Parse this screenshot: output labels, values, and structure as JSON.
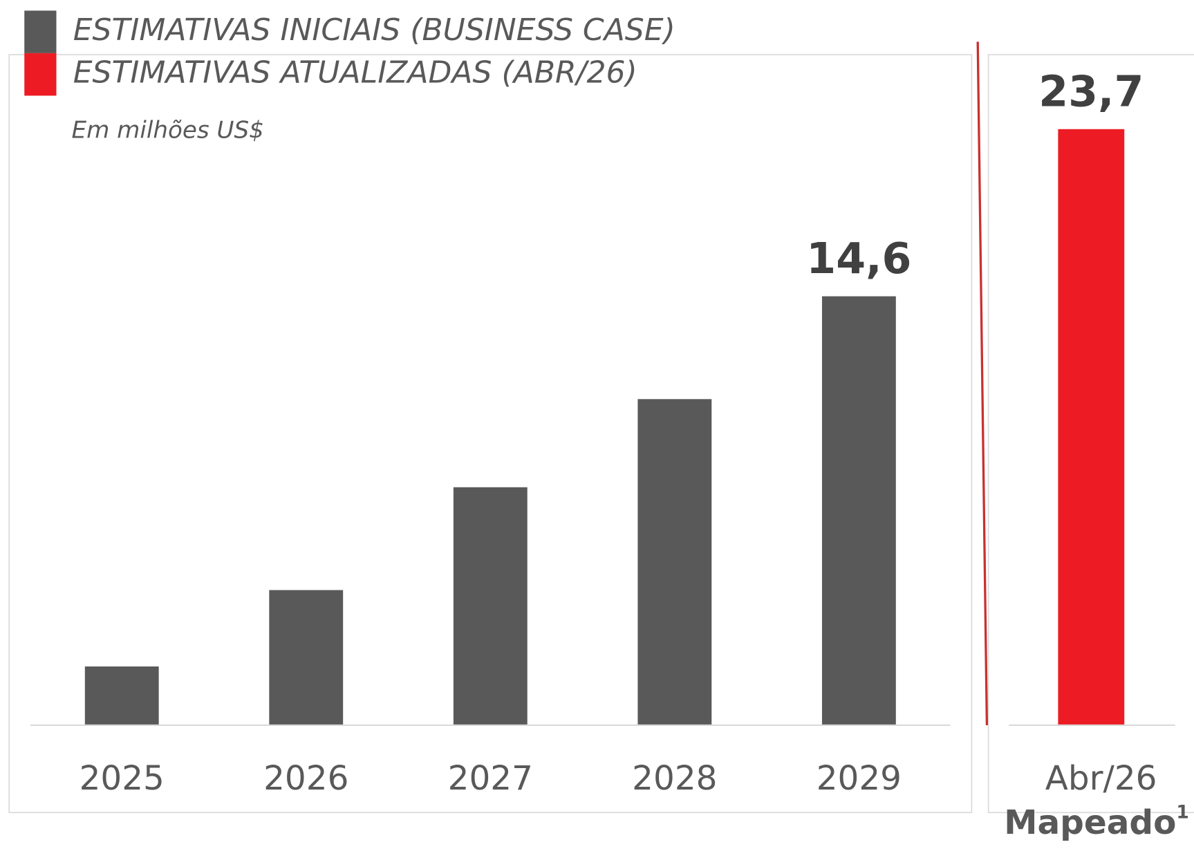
{
  "chart_data": [
    {
      "type": "bar",
      "subtitle": "Em milhões US$",
      "categories": [
        "2025",
        "2026",
        "2027",
        "2028",
        "2029"
      ],
      "series": [
        {
          "name": "ESTIMATIVAS INICIAIS (BUSINESS CASE)",
          "color": "#595959",
          "values": [
            2.0,
            4.6,
            8.1,
            11.1,
            14.6
          ],
          "value_labels": [
            null,
            null,
            null,
            null,
            "14,6"
          ]
        }
      ],
      "ylim": [
        0,
        16
      ]
    },
    {
      "type": "bar",
      "categories": [
        "Abr/26"
      ],
      "xlabel": "Mapeado",
      "xlabel_note": "1",
      "series": [
        {
          "name": "ESTIMATIVAS ATUALIZADAS (ABR/26)",
          "color": "#ed1c24",
          "values": [
            23.7
          ],
          "value_labels": [
            "23,7"
          ]
        }
      ],
      "ylim": [
        0,
        25
      ]
    }
  ]
}
